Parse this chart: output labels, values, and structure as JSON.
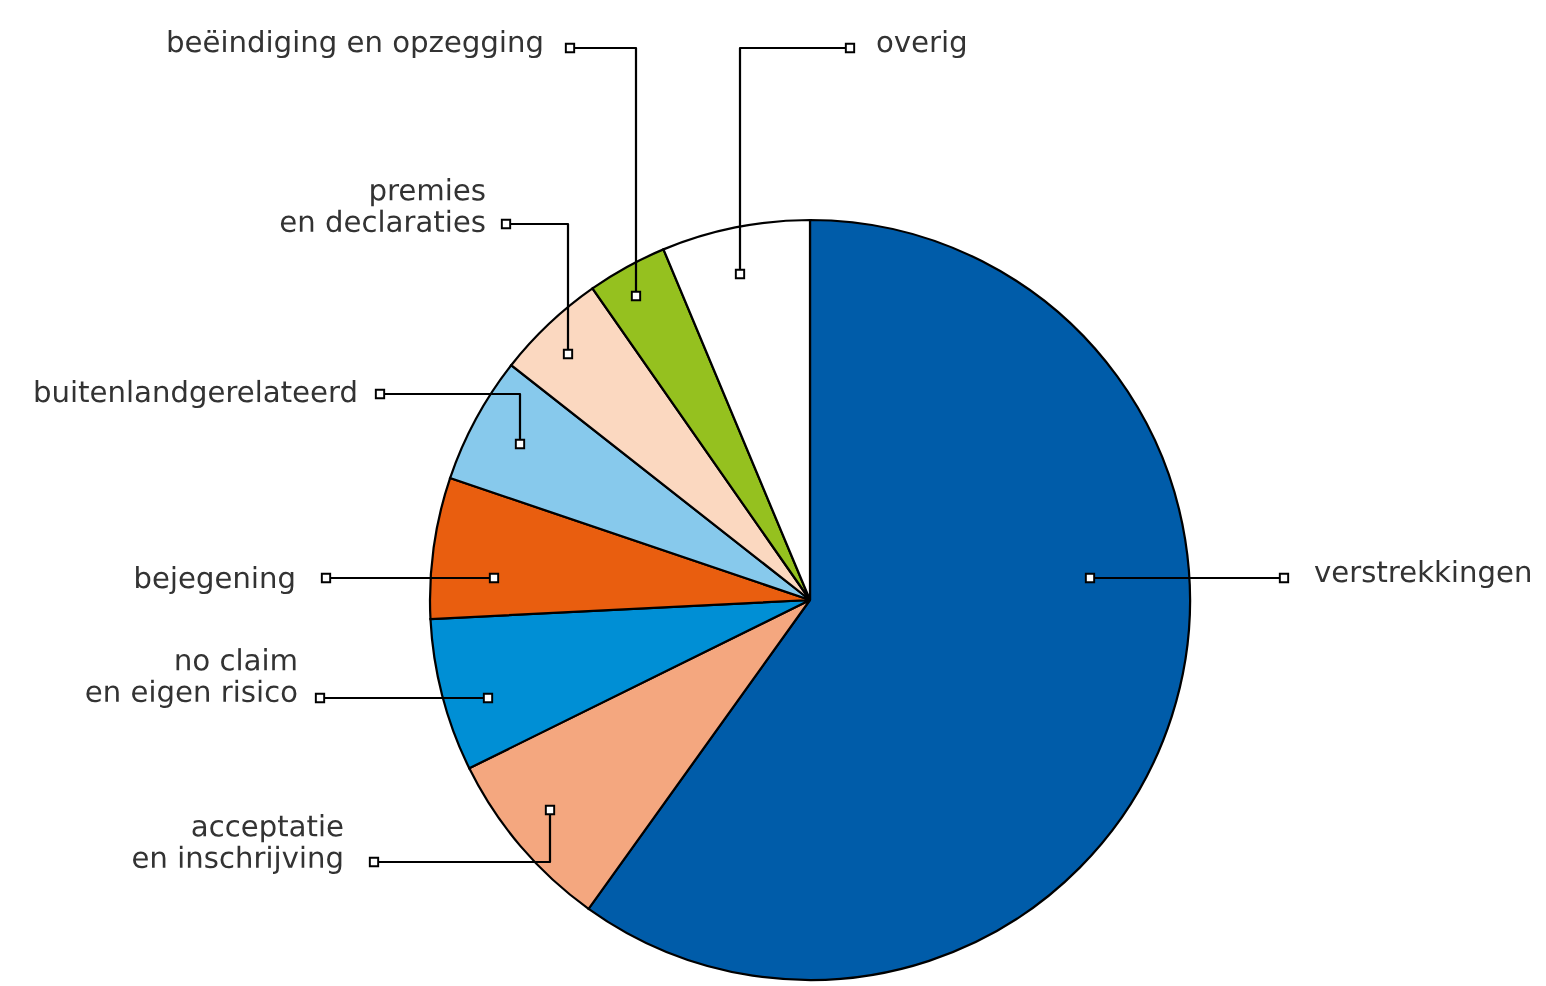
{
  "chart_data": {
    "type": "pie",
    "categories": [
      "verstrekkingen",
      "acceptatie\nen inschrijving",
      "no claim\nen eigen risico",
      "bejegening",
      "buitenlandgerelateerd",
      "premies\nen declaraties",
      "beëindiging en opzegging",
      "overig"
    ],
    "values": [
      59.9,
      7.8,
      6.5,
      6.0,
      5.4,
      4.7,
      3.4,
      6.3
    ],
    "colors": [
      "#005ca9",
      "#f4a77f",
      "#008fd5",
      "#e95e0f",
      "#87c9ec",
      "#fbd8c0",
      "#95c11f",
      "#ffffff"
    ],
    "legend": "left"
  }
}
